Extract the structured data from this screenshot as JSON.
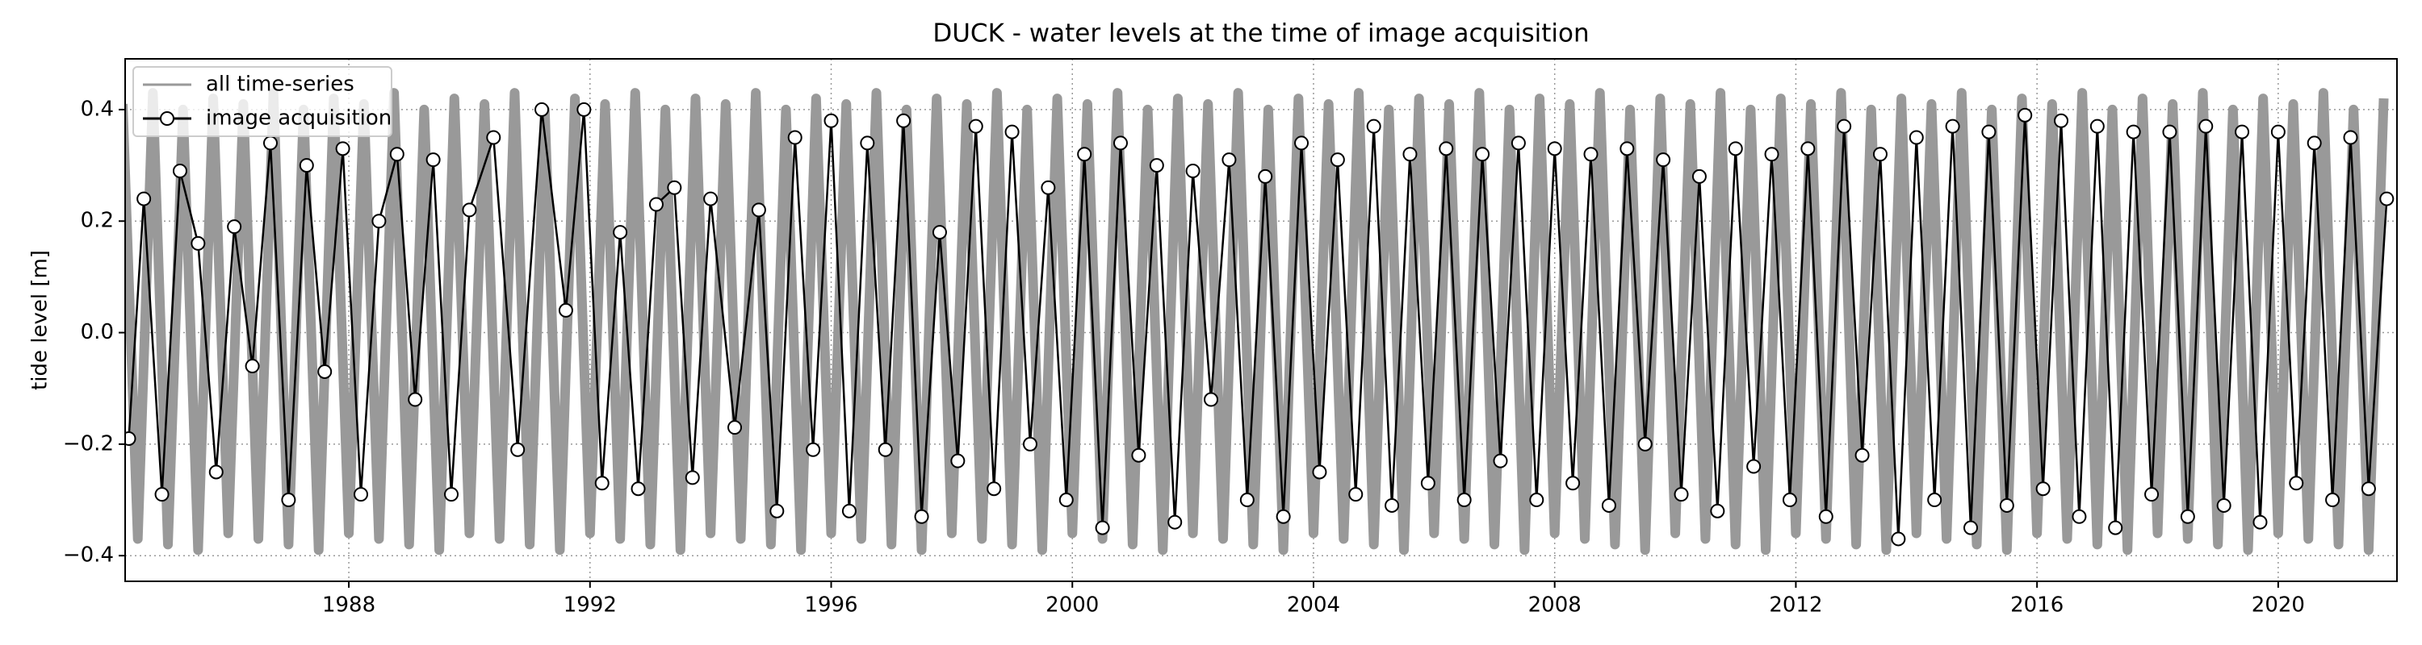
{
  "chart_data": {
    "type": "line",
    "title": "DUCK - water levels at the time of image acquisition",
    "y_label": "tide level [m]",
    "xlim": [
      1984.29,
      2021.97
    ],
    "xticks": [
      1988,
      1992,
      1996,
      2000,
      2004,
      2008,
      2012,
      2016,
      2020
    ],
    "ylim": [
      -0.446,
      0.491
    ],
    "yticks": [
      {
        "value": -0.4,
        "label": "−0.4"
      },
      {
        "value": -0.2,
        "label": "−0.2"
      },
      {
        "value": 0,
        "label": "0.0"
      },
      0.2,
      0.4
    ],
    "grid": true,
    "legend": "upper-left",
    "series": [
      {
        "name": "all time-series",
        "color": "#999999",
        "x": [
          1984.25,
          1984.5,
          1984.75,
          1985,
          1985.25,
          1985.5,
          1985.75,
          1986,
          1986.25,
          1986.5,
          1986.75,
          1987,
          1987.25,
          1987.5,
          1987.75,
          1988,
          1988.25,
          1988.5,
          1988.75,
          1989,
          1989.25,
          1989.5,
          1989.75,
          1990,
          1990.25,
          1990.5,
          1990.75,
          1991,
          1991.25,
          1991.5,
          1991.75,
          1992,
          1992.25,
          1992.5,
          1992.75,
          1993,
          1993.25,
          1993.5,
          1993.75,
          1994,
          1994.25,
          1994.5,
          1994.75,
          1995,
          1995.25,
          1995.5,
          1995.75,
          1996,
          1996.25,
          1996.5,
          1996.75,
          1997,
          1997.25,
          1997.5,
          1997.75,
          1998,
          1998.25,
          1998.5,
          1998.75,
          1999,
          1999.25,
          1999.5,
          1999.75,
          2000,
          2000.25,
          2000.5,
          2000.75,
          2001,
          2001.25,
          2001.5,
          2001.75,
          2002,
          2002.25,
          2002.5,
          2002.75,
          2003,
          2003.25,
          2003.5,
          2003.75,
          2004,
          2004.25,
          2004.5,
          2004.75,
          2005,
          2005.25,
          2005.5,
          2005.75,
          2006,
          2006.25,
          2006.5,
          2006.75,
          2007,
          2007.25,
          2007.5,
          2007.75,
          2008,
          2008.25,
          2008.5,
          2008.75,
          2009,
          2009.25,
          2009.5,
          2009.75,
          2010,
          2010.25,
          2010.5,
          2010.75,
          2011,
          2011.25,
          2011.5,
          2011.75,
          2012,
          2012.25,
          2012.5,
          2012.75,
          2013,
          2013.25,
          2013.5,
          2013.75,
          2014,
          2014.25,
          2014.5,
          2014.75,
          2015,
          2015.25,
          2015.5,
          2015.75,
          2016,
          2016.25,
          2016.5,
          2016.75,
          2017,
          2017.25,
          2017.5,
          2017.75,
          2018,
          2018.25,
          2018.5,
          2018.75,
          2019,
          2019.25,
          2019.5,
          2019.75,
          2020,
          2020.25,
          2020.5,
          2020.75,
          2021,
          2021.25,
          2021.5,
          2021.75
        ],
        "values": [
          0.41,
          -0.37,
          0.43,
          -0.38,
          0.4,
          -0.39,
          0.42,
          -0.36,
          0.41,
          -0.37,
          0.43,
          -0.38,
          0.4,
          -0.39,
          0.42,
          -0.36,
          0.41,
          -0.37,
          0.43,
          -0.38,
          0.4,
          -0.39,
          0.42,
          -0.36,
          0.41,
          -0.37,
          0.43,
          -0.38,
          0.4,
          -0.39,
          0.42,
          -0.36,
          0.41,
          -0.37,
          0.43,
          -0.38,
          0.4,
          -0.39,
          0.42,
          -0.36,
          0.41,
          -0.37,
          0.43,
          -0.38,
          0.4,
          -0.39,
          0.42,
          -0.36,
          0.41,
          -0.37,
          0.43,
          -0.38,
          0.4,
          -0.39,
          0.42,
          -0.36,
          0.41,
          -0.37,
          0.43,
          -0.38,
          0.4,
          -0.39,
          0.42,
          -0.36,
          0.41,
          -0.37,
          0.43,
          -0.38,
          0.4,
          -0.39,
          0.42,
          -0.36,
          0.41,
          -0.37,
          0.43,
          -0.38,
          0.4,
          -0.39,
          0.42,
          -0.36,
          0.41,
          -0.37,
          0.43,
          -0.38,
          0.4,
          -0.39,
          0.42,
          -0.36,
          0.41,
          -0.37,
          0.43,
          -0.38,
          0.4,
          -0.39,
          0.42,
          -0.36,
          0.41,
          -0.37,
          0.43,
          -0.38,
          0.4,
          -0.39,
          0.42,
          -0.36,
          0.41,
          -0.37,
          0.43,
          -0.38,
          0.4,
          -0.39,
          0.42,
          -0.36,
          0.41,
          -0.37,
          0.43,
          -0.38,
          0.4,
          -0.39,
          0.42,
          -0.36,
          0.41,
          -0.37,
          0.43,
          -0.38,
          0.4,
          -0.39,
          0.42,
          -0.36,
          0.41,
          -0.37,
          0.43,
          -0.38,
          0.4,
          -0.39,
          0.42,
          -0.36,
          0.41,
          -0.37,
          0.43,
          -0.38,
          0.4,
          -0.39,
          0.42,
          -0.36,
          0.41,
          -0.37,
          0.43,
          -0.38,
          0.4,
          -0.39,
          0.42
        ]
      },
      {
        "name": "image acquisition",
        "color": "#000000",
        "marker_color": "#ffffff",
        "x": [
          1984.35,
          1984.6,
          1984.9,
          1985.2,
          1985.5,
          1985.8,
          1986.1,
          1986.4,
          1986.7,
          1987.0,
          1987.3,
          1987.6,
          1987.9,
          1988.2,
          1988.5,
          1988.8,
          1989.1,
          1989.4,
          1989.7,
          1990.0,
          1990.4,
          1990.8,
          1991.2,
          1991.6,
          1991.9,
          1992.2,
          1992.5,
          1992.8,
          1993.1,
          1993.4,
          1993.7,
          1994.0,
          1994.4,
          1994.8,
          1995.1,
          1995.4,
          1995.7,
          1996.0,
          1996.3,
          1996.6,
          1996.9,
          1997.2,
          1997.5,
          1997.8,
          1998.1,
          1998.4,
          1998.7,
          1999.0,
          1999.3,
          1999.6,
          1999.9,
          2000.2,
          2000.5,
          2000.8,
          2001.1,
          2001.4,
          2001.7,
          2002.0,
          2002.3,
          2002.6,
          2002.9,
          2003.2,
          2003.5,
          2003.8,
          2004.1,
          2004.4,
          2004.7,
          2005.0,
          2005.3,
          2005.6,
          2005.9,
          2006.2,
          2006.5,
          2006.8,
          2007.1,
          2007.4,
          2007.7,
          2008.0,
          2008.3,
          2008.6,
          2008.9,
          2009.2,
          2009.5,
          2009.8,
          2010.1,
          2010.4,
          2010.7,
          2011.0,
          2011.3,
          2011.6,
          2011.9,
          2012.2,
          2012.5,
          2012.8,
          2013.1,
          2013.4,
          2013.7,
          2014.0,
          2014.3,
          2014.6,
          2014.9,
          2015.2,
          2015.5,
          2015.8,
          2016.1,
          2016.4,
          2016.7,
          2017.0,
          2017.3,
          2017.6,
          2017.9,
          2018.2,
          2018.5,
          2018.8,
          2019.1,
          2019.4,
          2019.7,
          2020.0,
          2020.3,
          2020.6,
          2020.9,
          2021.2,
          2021.5,
          2021.8
        ],
        "values": [
          -0.19,
          0.24,
          -0.29,
          0.29,
          0.16,
          -0.25,
          0.19,
          -0.06,
          0.34,
          -0.3,
          0.3,
          -0.07,
          0.33,
          -0.29,
          0.2,
          0.32,
          -0.12,
          0.31,
          -0.29,
          0.22,
          0.35,
          -0.21,
          0.4,
          0.04,
          0.4,
          -0.27,
          0.18,
          -0.28,
          0.23,
          0.26,
          -0.26,
          0.24,
          -0.17,
          0.22,
          -0.32,
          0.35,
          -0.21,
          0.38,
          -0.32,
          0.34,
          -0.21,
          0.38,
          -0.33,
          0.18,
          -0.23,
          0.37,
          -0.28,
          0.36,
          -0.2,
          0.26,
          -0.3,
          0.32,
          -0.35,
          0.34,
          -0.22,
          0.3,
          -0.34,
          0.29,
          -0.12,
          0.31,
          -0.3,
          0.28,
          -0.33,
          0.34,
          -0.25,
          0.31,
          -0.29,
          0.37,
          -0.31,
          0.32,
          -0.27,
          0.33,
          -0.3,
          0.32,
          -0.23,
          0.34,
          -0.3,
          0.33,
          -0.27,
          0.32,
          -0.31,
          0.33,
          -0.2,
          0.31,
          -0.29,
          0.28,
          -0.32,
          0.33,
          -0.24,
          0.32,
          -0.3,
          0.33,
          -0.33,
          0.37,
          -0.22,
          0.32,
          -0.37,
          0.35,
          -0.3,
          0.37,
          -0.35,
          0.36,
          -0.31,
          0.39,
          -0.28,
          0.38,
          -0.33,
          0.37,
          -0.35,
          0.36,
          -0.29,
          0.36,
          -0.33,
          0.37,
          -0.31,
          0.36,
          -0.34,
          0.36,
          -0.27,
          0.34,
          -0.3,
          0.35,
          -0.28,
          0.24
        ]
      }
    ]
  }
}
